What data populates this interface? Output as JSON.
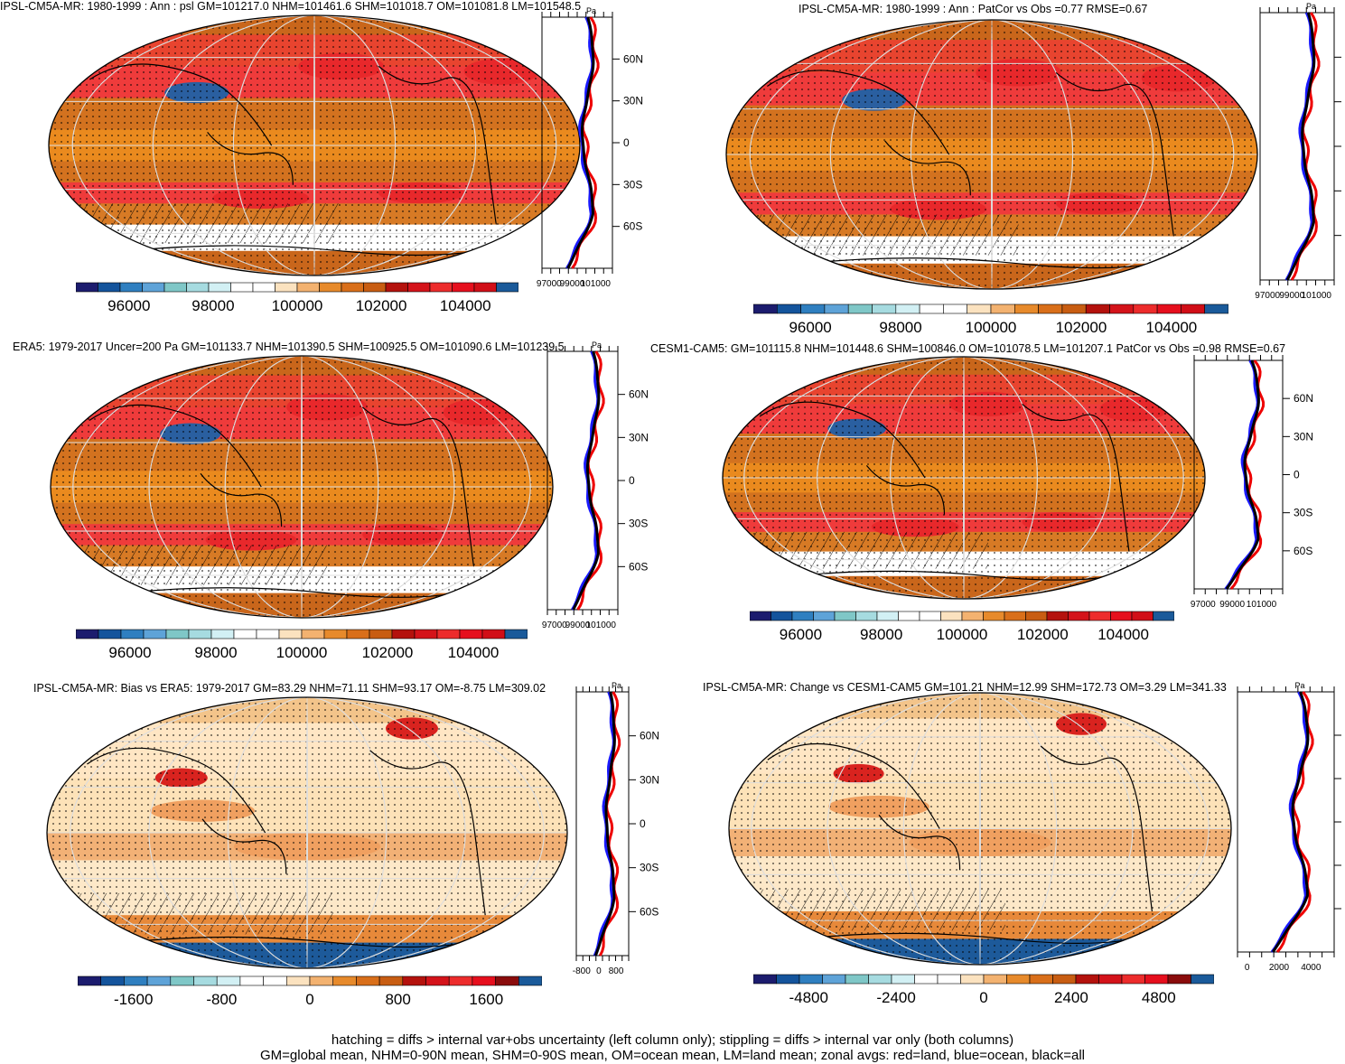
{
  "colors": {
    "land_line": "#000000",
    "ocean_line": "#1a1aff",
    "all_line": "#000000",
    "land_zonal": "#ee0000",
    "grid": "#dddddd"
  },
  "palette_abs": [
    "#1c1c6e",
    "#14549c",
    "#2f7fc0",
    "#5ea3d8",
    "#7fc7c7",
    "#a6dbe0",
    "#d2f0f4",
    "#ffffff",
    "#ffffff",
    "#fbe2bf",
    "#f3b270",
    "#e78a2b",
    "#d96f1a",
    "#c85d12",
    "#b4120d",
    "#d4131a",
    "#ed2c2c",
    "#e60f1d",
    "#d10e17",
    "#1a5a9a"
  ],
  "panels": [
    {
      "id": "ipsl-abs",
      "title": "IPSL-CM5A-MR: 1980-1999 : Ann : psl GM=101217.0 NHM=101461.6 SHM=101018.7 OM=101081.8 LM=101548.5",
      "cbar_labels": [
        "96000",
        "98000",
        "100000",
        "102000",
        "104000"
      ],
      "zonal_xlabels": [
        "97000",
        "99000",
        "101000"
      ],
      "zonal_unit": "Pa",
      "zonal_lat_labels": [
        "60N",
        "30N",
        "0",
        "30S",
        "60S"
      ],
      "fill": "abs"
    },
    {
      "id": "ipsl-patcor",
      "title": "IPSL-CM5A-MR: 1980-1999 : Ann : PatCor vs Obs =0.77 RMSE=0.67",
      "cbar_labels": [
        "96000",
        "98000",
        "100000",
        "102000",
        "104000"
      ],
      "zonal_xlabels": [
        "97000",
        "99000",
        "101000"
      ],
      "zonal_unit": "Pa",
      "zonal_lat_labels": [],
      "fill": "abs"
    },
    {
      "id": "era5",
      "title": "ERA5: 1979-2017 Uncer=200 Pa GM=101133.7 NHM=101390.5 SHM=100925.5 OM=101090.6 LM=101239.5",
      "cbar_labels": [
        "96000",
        "98000",
        "100000",
        "102000",
        "104000"
      ],
      "zonal_xlabels": [
        "97000",
        "99000",
        "101000"
      ],
      "zonal_unit": "Pa",
      "zonal_lat_labels": [
        "60N",
        "30N",
        "0",
        "30S",
        "60S"
      ],
      "fill": "abs"
    },
    {
      "id": "cesm",
      "title": "CESM1-CAM5: GM=101115.8 NHM=101448.6 SHM=100846.0 OM=101078.5 LM=101207.1 PatCor vs Obs =0.98 RMSE=0.67",
      "cbar_labels": [
        "96000",
        "98000",
        "100000",
        "102000",
        "104000"
      ],
      "zonal_xlabels": [
        "97000",
        "99000",
        "101000"
      ],
      "zonal_unit": "",
      "zonal_lat_labels": [
        "60N",
        "30N",
        "0",
        "30S",
        "60S"
      ],
      "fill": "abs"
    },
    {
      "id": "bias",
      "title": "IPSL-CM5A-MR: Bias vs ERA5: 1979-2017 GM=83.29 NHM=71.11 SHM=93.17 OM=-8.75 LM=309.02",
      "cbar_labels": [
        "-1600",
        "-800",
        "0",
        "800",
        "1600"
      ],
      "zonal_xlabels": [
        "-800",
        "0",
        "800"
      ],
      "zonal_unit": "Pa",
      "zonal_lat_labels": [
        "60N",
        "30N",
        "0",
        "30S",
        "60S"
      ],
      "fill": "diff"
    },
    {
      "id": "change",
      "title": "IPSL-CM5A-MR: Change vs CESM1-CAM5 GM=101.21 NHM=12.99 SHM=172.73 OM=3.29 LM=341.33",
      "cbar_labels": [
        "-4800",
        "-2400",
        "0",
        "2400",
        "4800"
      ],
      "zonal_xlabels": [
        "0",
        "2000",
        "4000"
      ],
      "zonal_unit": "Pa",
      "zonal_lat_labels": [],
      "fill": "diff"
    }
  ],
  "footer": {
    "line1": "hatching = diffs > internal var+obs uncertainty (left column only); stippling = diffs > internal var only (both columns)",
    "line2": "GM=global mean, NHM=0-90N mean, SHM=0-90S mean, OM=ocean mean, LM=land mean; zonal avgs: red=land, blue=ocean, black=all"
  }
}
